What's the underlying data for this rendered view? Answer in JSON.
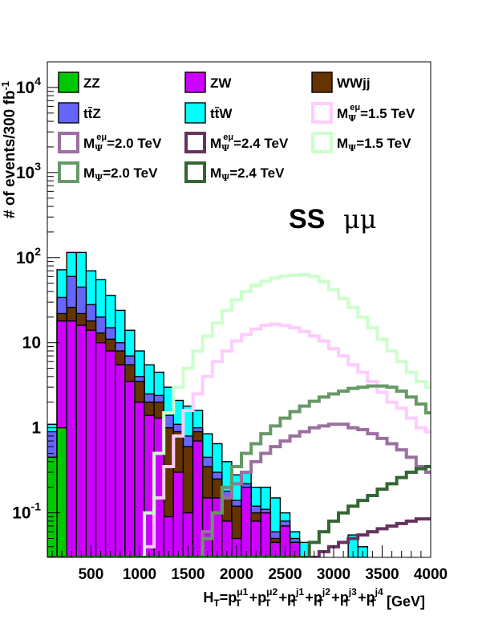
{
  "chart_data": {
    "type": "histogram",
    "scale": {
      "y": "log"
    },
    "ylim": [
      0.03,
      20000
    ],
    "xlim": [
      50,
      4000
    ],
    "bin_edges": [
      50,
      150,
      250,
      350,
      450,
      550,
      650,
      750,
      850,
      950,
      1050,
      1150,
      1250,
      1350,
      1450,
      1550,
      1650,
      1750,
      1850,
      1950,
      2050,
      2150,
      2250,
      2350,
      2450,
      2550,
      2650,
      2750,
      2850,
      2950,
      3050,
      3150,
      3250,
      3350,
      3450,
      3550,
      3650,
      3750,
      3850,
      3950,
      4050
    ],
    "xlabel": {
      "main": "H",
      "sub": "T",
      "rest": "=p",
      "parts": [
        "μ1",
        "μ2",
        "j1",
        "j2",
        "j3",
        "j4"
      ],
      "unit": "[GeV]"
    },
    "ylabel": "# of events/300 fb",
    "ylabel_sup": "-1",
    "annotation": {
      "ss": "SS",
      "mumu": "μμ"
    },
    "x_ticks": [
      {
        "value": 500,
        "label": "500"
      },
      {
        "value": 1000,
        "label": "1000"
      },
      {
        "value": 1500,
        "label": "1500"
      },
      {
        "value": 2000,
        "label": "2000"
      },
      {
        "value": 2500,
        "label": "2500"
      },
      {
        "value": 3000,
        "label": "3000"
      },
      {
        "value": 3500,
        "label": "3500"
      },
      {
        "value": 4000,
        "label": "4000"
      }
    ],
    "y_ticks": [
      {
        "value": 0.1,
        "base": "10",
        "exp": "-1"
      },
      {
        "value": 1,
        "base": "1",
        "exp": ""
      },
      {
        "value": 10,
        "base": "10",
        "exp": ""
      },
      {
        "value": 100,
        "base": "10",
        "exp": "2"
      },
      {
        "value": 1000,
        "base": "10",
        "exp": "3"
      },
      {
        "value": 10000,
        "base": "10",
        "exp": "4"
      }
    ],
    "stack": [
      {
        "name": "ZZ",
        "color": "#00c800",
        "values": [
          0.45,
          1,
          0,
          0,
          0,
          0,
          0,
          0,
          0,
          0,
          0,
          0,
          0,
          0,
          0,
          0,
          0,
          0,
          0,
          0,
          0,
          0,
          0,
          0,
          0,
          0,
          0,
          0,
          0,
          0,
          0,
          0,
          0,
          0,
          0,
          0,
          0,
          0,
          0,
          0
        ]
      },
      {
        "name": "ZW",
        "color": "#cc00ff",
        "values": [
          0.45,
          18,
          18,
          16,
          14,
          10,
          8,
          5.5,
          3.5,
          2,
          1.4,
          1.3,
          0.09,
          0.3,
          0.1,
          0.7,
          0.15,
          0.15,
          0.08,
          0.05,
          0.2,
          0.08,
          0.1,
          0.045,
          0.07,
          0.045,
          0,
          0,
          0,
          0,
          0,
          0,
          0,
          0,
          0,
          0,
          0,
          0,
          0,
          0
        ]
      },
      {
        "name": "WWjj",
        "color": "#663300",
        "values": [
          0.45,
          22,
          26,
          22,
          18,
          13,
          11,
          8,
          5.5,
          3.5,
          2,
          2,
          1,
          0.9,
          0.6,
          0.9,
          0.35,
          0.25,
          0.15,
          0.12,
          0.2,
          0.1,
          0.1,
          0.05,
          0.07,
          0.045,
          0,
          0,
          0,
          0,
          0,
          0,
          0,
          0,
          0,
          0,
          0,
          0,
          0,
          0
        ]
      },
      {
        "name": "ttZ",
        "color": "#6666ff",
        "values": [
          0.9,
          34,
          60,
          45,
          28,
          20,
          15,
          10,
          7,
          4,
          2.5,
          2.4,
          1.4,
          1.1,
          0.8,
          1,
          0.45,
          0.3,
          0.18,
          0.14,
          0.22,
          0.12,
          0.11,
          0.06,
          0.08,
          0.05,
          0,
          0,
          0,
          0,
          0,
          0,
          0,
          0,
          0,
          0,
          0,
          0,
          0,
          0
        ]
      },
      {
        "name": "ttW",
        "color": "#00ffff",
        "values": [
          1.1,
          72,
          115,
          115,
          70,
          55,
          36,
          24,
          14,
          8,
          5.5,
          4.5,
          3,
          2.1,
          1.8,
          1.6,
          0.85,
          0.65,
          0.4,
          0.28,
          0.3,
          0.2,
          0.2,
          0.15,
          0.1,
          0.06,
          0.045,
          0,
          0,
          0,
          0,
          0.055,
          0.04,
          0,
          0,
          0,
          0,
          0,
          0,
          0
        ]
      }
    ],
    "signals": [
      {
        "name": "Mee_1p5",
        "color": "#ffccff",
        "values": [
          0,
          0,
          0,
          0,
          0,
          0,
          0,
          0,
          0,
          0.01,
          0.04,
          0.15,
          0.35,
          0.8,
          1.6,
          2.5,
          4,
          6,
          8,
          10.5,
          12.5,
          14.5,
          16,
          16.5,
          16,
          15,
          13.5,
          12,
          10.5,
          8.5,
          7,
          5.5,
          4.5,
          3.5,
          2.6,
          2,
          1.7,
          1.3,
          1,
          0.9
        ]
      },
      {
        "name": "Mee_2p0",
        "color": "#9b6fa0",
        "values": [
          0,
          0,
          0,
          0,
          0,
          0,
          0,
          0,
          0,
          0,
          0,
          0,
          0,
          0.01,
          0.02,
          0.03,
          0.06,
          0.1,
          0.15,
          0.22,
          0.3,
          0.4,
          0.5,
          0.6,
          0.7,
          0.8,
          0.9,
          1,
          1.05,
          1.1,
          1.1,
          1,
          0.95,
          0.85,
          0.75,
          0.65,
          0.55,
          0.45,
          0.35,
          0.3
        ]
      },
      {
        "name": "Mee_2p4",
        "color": "#66335f",
        "values": [
          0,
          0,
          0,
          0,
          0,
          0,
          0,
          0,
          0,
          0,
          0,
          0,
          0,
          0,
          0,
          0,
          0,
          0,
          0,
          0,
          0,
          0,
          0,
          0.01,
          0.015,
          0.02,
          0.025,
          0.03,
          0.035,
          0.04,
          0.045,
          0.05,
          0.055,
          0.06,
          0.065,
          0.07,
          0.075,
          0.08,
          0.085,
          0.085
        ]
      },
      {
        "name": "M_1p5",
        "color": "#ccffcc",
        "values": [
          0,
          0,
          0,
          0,
          0,
          0,
          0,
          0,
          0,
          0,
          0.1,
          0.5,
          1.5,
          3,
          5,
          8,
          12,
          17,
          24,
          32,
          40,
          47,
          53,
          58,
          61,
          62,
          63,
          60,
          52,
          42,
          33,
          26,
          20,
          15,
          11,
          8,
          6,
          4.5,
          3.5,
          3
        ]
      },
      {
        "name": "M_2p0",
        "color": "#669966",
        "values": [
          0,
          0,
          0,
          0,
          0,
          0,
          0,
          0,
          0,
          0,
          0,
          0,
          0,
          0,
          0.01,
          0.02,
          0.05,
          0.1,
          0.2,
          0.35,
          0.5,
          0.65,
          0.85,
          1.05,
          1.3,
          1.55,
          1.8,
          2.05,
          2.3,
          2.5,
          2.7,
          2.9,
          3,
          3.1,
          3.1,
          3,
          2.7,
          2.3,
          1.9,
          1.5
        ]
      },
      {
        "name": "M_2p4",
        "color": "#336633",
        "values": [
          0,
          0,
          0,
          0,
          0,
          0,
          0,
          0,
          0,
          0,
          0,
          0,
          0,
          0,
          0,
          0,
          0,
          0,
          0,
          0,
          0,
          0,
          0,
          0,
          0.01,
          0.02,
          0.03,
          0.045,
          0.06,
          0.08,
          0.1,
          0.12,
          0.14,
          0.16,
          0.19,
          0.22,
          0.26,
          0.3,
          0.33,
          0.35
        ]
      }
    ],
    "legend": [
      {
        "key": "ZZ",
        "label": "ZZ",
        "kind": "fill",
        "color": "#00c800"
      },
      {
        "key": "ZW",
        "label": "ZW",
        "kind": "fill",
        "color": "#cc00ff"
      },
      {
        "key": "WWjj",
        "label": "WWjj",
        "kind": "fill",
        "color": "#663300"
      },
      {
        "key": "ttZ",
        "label": "tt̄Z",
        "kind": "fill",
        "color": "#6666ff"
      },
      {
        "key": "ttW",
        "label": "tt̄W",
        "kind": "fill",
        "color": "#00ffff"
      },
      {
        "key": "Mee_1p5",
        "label": "=1.5 TeV",
        "sup": "eμ",
        "kind": "line",
        "color": "#ffccff"
      },
      {
        "key": "Mee_2p0",
        "label": "=2.0 TeV",
        "sup": "eμ",
        "kind": "line",
        "color": "#9b6fa0"
      },
      {
        "key": "Mee_2p4",
        "label": "=2.4 TeV",
        "sup": "eμ",
        "kind": "line",
        "color": "#66335f"
      },
      {
        "key": "M_1p5",
        "label": "=1.5 TeV",
        "sup": "",
        "kind": "line",
        "color": "#ccffcc"
      },
      {
        "key": "M_2p0",
        "label": "=2.0 TeV",
        "sup": "",
        "kind": "line",
        "color": "#669966"
      },
      {
        "key": "M_2p4",
        "label": "=2.4 TeV",
        "sup": "",
        "kind": "line",
        "color": "#336633"
      }
    ],
    "legend_position": "top"
  }
}
